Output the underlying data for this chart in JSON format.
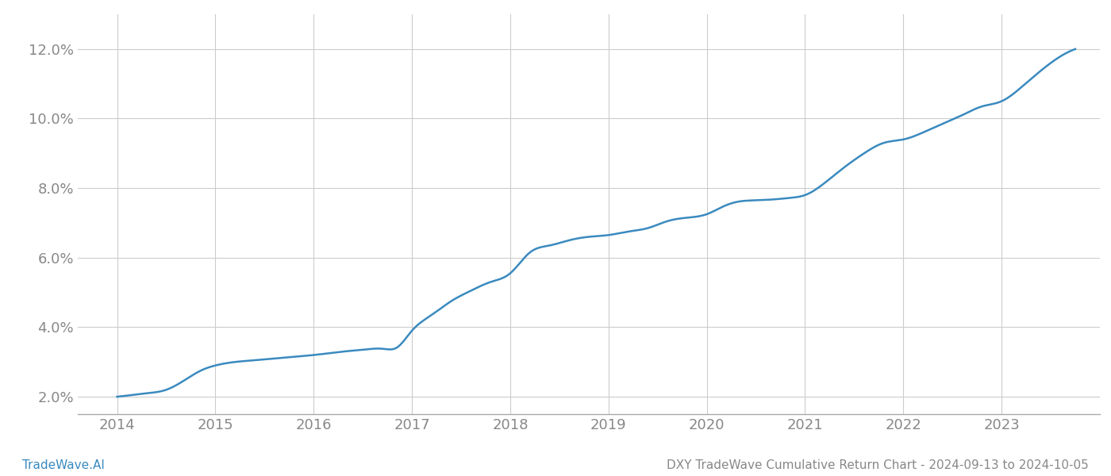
{
  "x_values": [
    2014.0,
    2014.15,
    2014.3,
    2014.5,
    2014.7,
    2014.85,
    2015.0,
    2015.2,
    2015.4,
    2015.6,
    2015.8,
    2016.0,
    2016.15,
    2016.3,
    2016.5,
    2016.7,
    2016.85,
    2017.0,
    2017.2,
    2017.4,
    2017.6,
    2017.8,
    2018.0,
    2018.2,
    2018.4,
    2018.6,
    2018.8,
    2019.0,
    2019.2,
    2019.4,
    2019.6,
    2019.8,
    2020.0,
    2020.15,
    2020.3,
    2020.5,
    2020.7,
    2020.85,
    2021.0,
    2021.2,
    2021.4,
    2021.6,
    2021.8,
    2022.0,
    2022.2,
    2022.4,
    2022.6,
    2022.8,
    2023.0,
    2023.2,
    2023.5,
    2023.75
  ],
  "y_values": [
    2.0,
    2.05,
    2.1,
    2.2,
    2.5,
    2.75,
    2.9,
    3.0,
    3.05,
    3.1,
    3.15,
    3.2,
    3.25,
    3.3,
    3.35,
    3.38,
    3.42,
    3.9,
    4.35,
    4.75,
    5.05,
    5.3,
    5.55,
    6.15,
    6.35,
    6.5,
    6.6,
    6.65,
    6.75,
    6.85,
    7.05,
    7.15,
    7.25,
    7.45,
    7.6,
    7.65,
    7.68,
    7.72,
    7.8,
    8.15,
    8.6,
    9.0,
    9.3,
    9.4,
    9.6,
    9.85,
    10.1,
    10.35,
    10.5,
    10.9,
    11.6,
    12.0
  ],
  "line_color": "#3a8abf",
  "line_width": 1.8,
  "background_color": "#ffffff",
  "grid_color": "#cccccc",
  "tick_label_color": "#888888",
  "xlabel_years": [
    2014,
    2015,
    2016,
    2017,
    2018,
    2019,
    2020,
    2021,
    2022,
    2023
  ],
  "ylim": [
    1.5,
    13.0
  ],
  "xlim": [
    2013.6,
    2024.0
  ],
  "yticks": [
    2.0,
    4.0,
    6.0,
    8.0,
    10.0,
    12.0
  ],
  "footer_left": "TradeWave.AI",
  "footer_right": "DXY TradeWave Cumulative Return Chart - 2024-09-13 to 2024-10-05",
  "footer_color": "#888888",
  "footer_left_color": "#3a8abf",
  "tick_fontsize": 13,
  "footer_fontsize": 11
}
